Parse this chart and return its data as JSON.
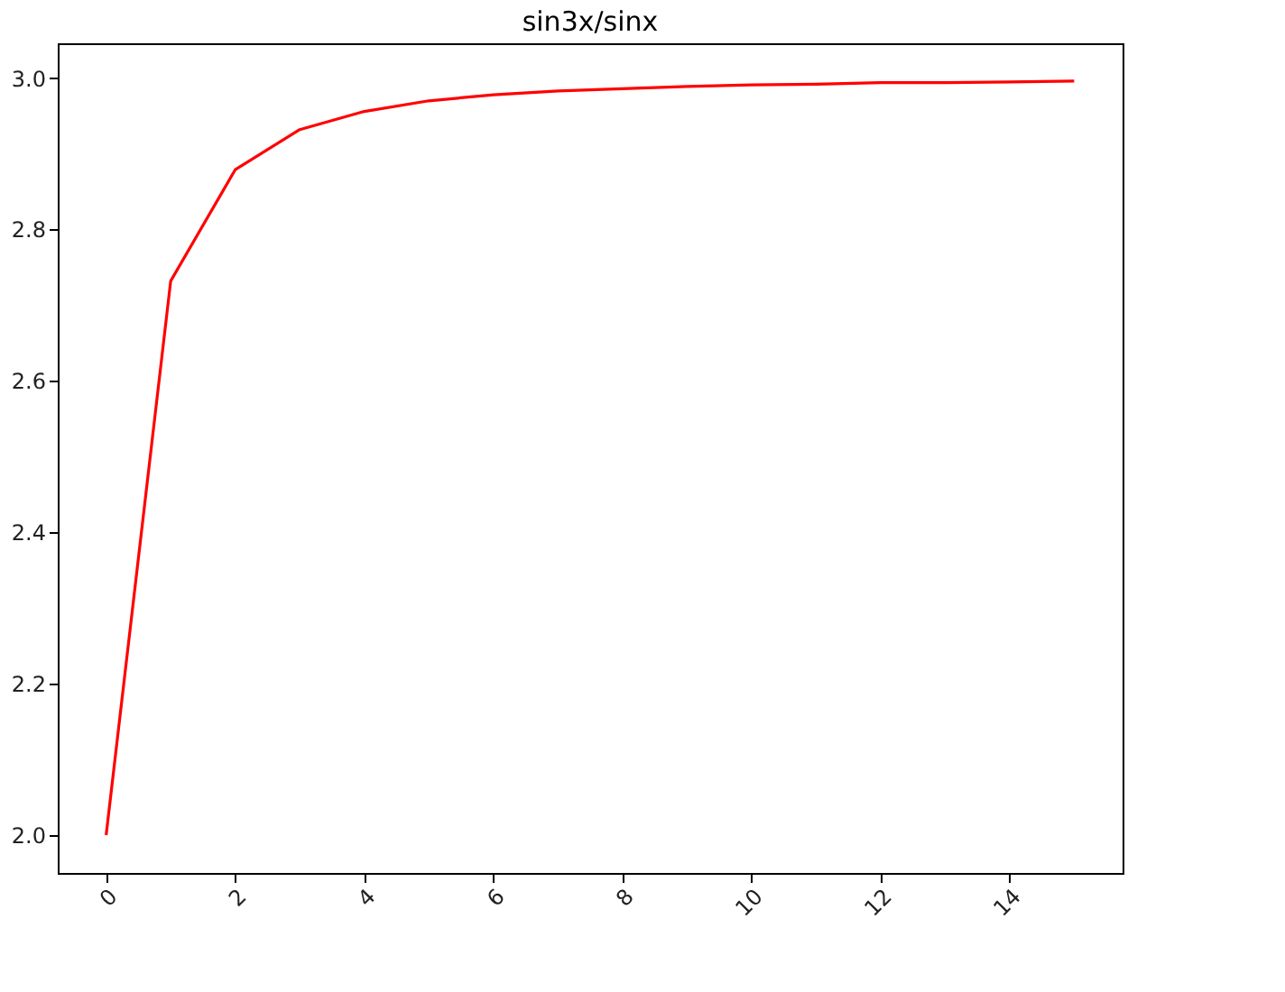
{
  "chart_data": {
    "type": "line",
    "title": "sin3x/sinx",
    "x": [
      0,
      1,
      2,
      3,
      4,
      5,
      6,
      7,
      8,
      9,
      10,
      11,
      12,
      13,
      14,
      15
    ],
    "series": [
      {
        "color": "#ff0000",
        "values": [
          2.0,
          2.732,
          2.879,
          2.932,
          2.956,
          2.97,
          2.978,
          2.983,
          2.986,
          2.989,
          2.991,
          2.992,
          2.994,
          2.994,
          2.995,
          2.996
        ]
      }
    ],
    "xlim": [
      -0.75,
      15.75
    ],
    "xticks": [
      0,
      2,
      4,
      6,
      8,
      10,
      12,
      14
    ],
    "ylim": [
      1.95,
      3.046
    ],
    "yticks": [
      {
        "value": 2.0,
        "label": "2.0"
      },
      {
        "value": 2.2,
        "label": "2.2"
      },
      {
        "value": 2.4,
        "label": "2.4"
      },
      {
        "value": 2.6,
        "label": "2.6"
      },
      {
        "value": 2.8,
        "label": "2.8"
      },
      {
        "value": 3.0,
        "label": "3.0"
      }
    ],
    "grid": false,
    "marker": "none",
    "line_style": "solid"
  }
}
